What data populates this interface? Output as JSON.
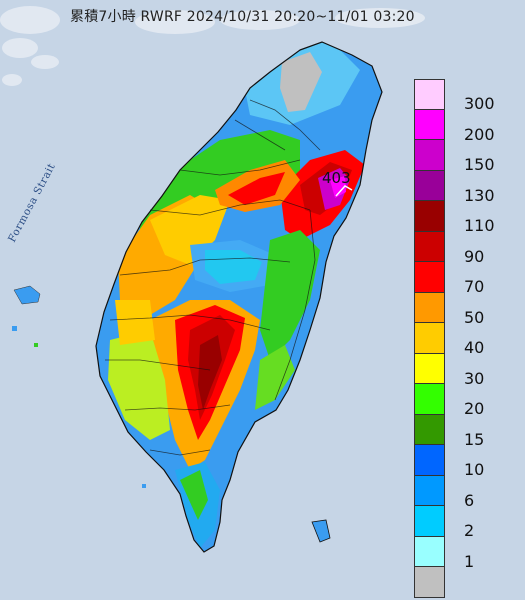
{
  "title": "累積7小時 RWRF 2024/10/31 20:20~11/01 03:20",
  "strait_label": "Formosa Strait",
  "max_label": "403",
  "legend": [
    {
      "label": "300",
      "color": "#ffccff"
    },
    {
      "label": "200",
      "color": "#ff00ff"
    },
    {
      "label": "150",
      "color": "#cc00cc"
    },
    {
      "label": "130",
      "color": "#990099"
    },
    {
      "label": "110",
      "color": "#990000"
    },
    {
      "label": "90",
      "color": "#cc0000"
    },
    {
      "label": "70",
      "color": "#ff0000"
    },
    {
      "label": "50",
      "color": "#ff9900"
    },
    {
      "label": "40",
      "color": "#ffcc00"
    },
    {
      "label": "30",
      "color": "#ffff00"
    },
    {
      "label": "20",
      "color": "#33ff00"
    },
    {
      "label": "15",
      "color": "#339900"
    },
    {
      "label": "10",
      "color": "#0066ff"
    },
    {
      "label": "6",
      "color": "#0099ff"
    },
    {
      "label": "2",
      "color": "#00ccff"
    },
    {
      "label": "1",
      "color": "#99ffff"
    },
    {
      "label": "",
      "color": "#c0c0c0"
    }
  ]
}
